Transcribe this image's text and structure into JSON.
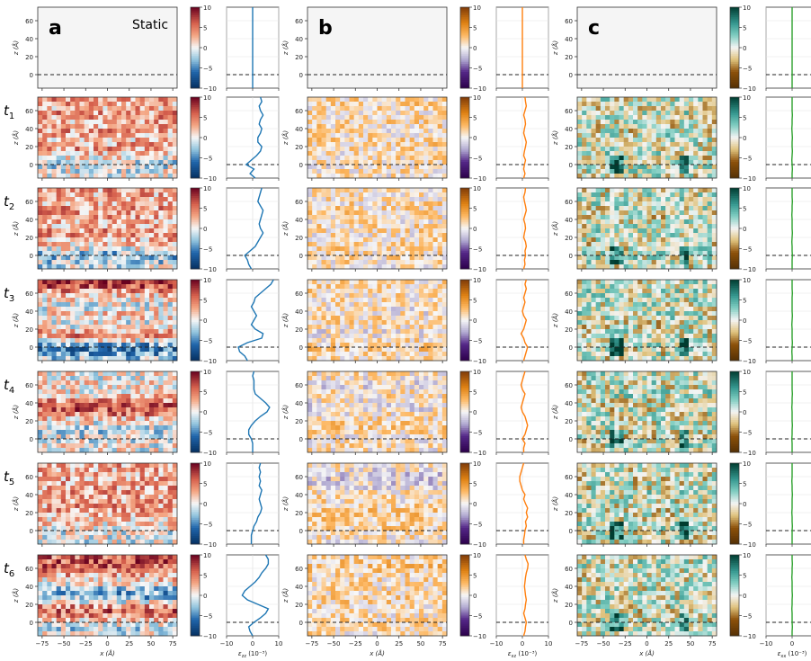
{
  "chart_data": {
    "type": "heatmap",
    "panel_letters": [
      "a",
      "b",
      "c"
    ],
    "static_label": "Static",
    "row_labels": [
      "t",
      "t",
      "t",
      "t",
      "t",
      "t"
    ],
    "row_subscripts": [
      "1",
      "2",
      "3",
      "4",
      "5",
      "6"
    ],
    "heatmap": {
      "xlabel": "x (Å)",
      "ylabel": "z (Å)",
      "xlim": [
        -80,
        80
      ],
      "ylim": [
        -15,
        75
      ],
      "xticks": [
        "−75",
        "−50",
        "−25",
        "0",
        "25",
        "50",
        "75"
      ],
      "yticks": [
        "0",
        "20",
        "40",
        "60"
      ],
      "interface_z": 0
    },
    "colorbar": {
      "range": [
        -10,
        10
      ],
      "ticks": [
        "10",
        "5",
        "0",
        "−5",
        "−10"
      ]
    },
    "profile": {
      "xlim": [
        -10,
        10
      ],
      "xticks": [
        "−10",
        "0",
        "10"
      ]
    },
    "columns": [
      {
        "letter": "a",
        "component": "zz",
        "profile_xlabel": "ε",
        "profile_xlabel_sub": "zz",
        "profile_xlabel_unit": " (10⁻³)",
        "colormap": "RdBu_r",
        "line_color": "#1f77b4",
        "profile_z": [
          -15,
          -10,
          -5,
          0,
          5,
          10,
          15,
          20,
          25,
          30,
          35,
          40,
          45,
          50,
          55,
          60,
          65,
          70,
          75
        ],
        "profiles": [
          [
            0,
            0,
            0,
            0,
            0,
            0,
            0,
            0,
            0,
            0,
            0,
            0,
            0,
            0,
            0,
            0,
            0,
            0,
            0
          ],
          [
            1,
            -1,
            0.5,
            -2.5,
            -0.5,
            1.5,
            3,
            3.5,
            2,
            2,
            3,
            3.5,
            2.5,
            3,
            4,
            3,
            2.5,
            3.5,
            3
          ],
          [
            -0.5,
            -1.5,
            -2,
            -3,
            -1,
            1,
            2,
            3,
            4,
            3,
            2.5,
            3,
            3.5,
            4,
            3,
            2,
            2.5,
            3,
            3.5
          ],
          [
            -2,
            -3,
            -5,
            -5.5,
            -2,
            3.5,
            4,
            1,
            -0.5,
            0.5,
            1.5,
            0.5,
            -0.5,
            0.5,
            1,
            3,
            5,
            7,
            8
          ],
          [
            0,
            0,
            0,
            -0.5,
            -1.5,
            -1.5,
            -0.5,
            1,
            3,
            5.5,
            6.5,
            5,
            3,
            1,
            0.5,
            0.5,
            0.5,
            0,
            0.5
          ],
          [
            -0.5,
            -0.5,
            -0.5,
            0,
            0.5,
            1.5,
            2,
            3,
            3.5,
            3,
            2.5,
            3,
            3.5,
            2.5,
            3,
            2.5,
            3,
            2.5,
            3
          ],
          [
            0,
            -1,
            -1.5,
            0.5,
            3,
            5,
            6,
            2,
            -2,
            -4,
            -3,
            -1,
            1,
            2.5,
            3.5,
            5,
            6,
            6,
            5
          ]
        ]
      },
      {
        "letter": "b",
        "component": "xz",
        "profile_xlabel": "ε",
        "profile_xlabel_sub": "xz",
        "profile_xlabel_unit": " (10⁻³)",
        "colormap": "PuOr_r",
        "line_color": "#ff7f0e",
        "profile_z": [
          -15,
          -10,
          -5,
          0,
          5,
          10,
          15,
          20,
          25,
          30,
          35,
          40,
          45,
          50,
          55,
          60,
          65,
          70,
          75
        ],
        "profiles": [
          [
            0,
            0,
            0,
            0,
            0,
            0,
            0,
            0,
            0,
            0,
            0,
            0,
            0,
            0,
            0,
            0,
            0,
            0,
            0
          ],
          [
            0.5,
            1,
            0.5,
            0.8,
            1.2,
            0.5,
            0.8,
            1.2,
            1.5,
            1,
            0.5,
            0.8,
            1.2,
            1,
            0.5,
            1,
            1.5,
            1.2,
            1
          ],
          [
            0.5,
            1,
            0.8,
            1.2,
            1,
            1.5,
            1.2,
            0.5,
            0.8,
            1.2,
            1,
            0.5,
            1,
            1.5,
            1.2,
            0.8,
            0.5,
            1,
            1.2
          ],
          [
            0.5,
            1,
            1.5,
            2,
            1,
            0.5,
            -0.5,
            0.5,
            1,
            1.5,
            0.5,
            0,
            0.5,
            1,
            0.5,
            1,
            1.5,
            1,
            1.5
          ],
          [
            0.5,
            0.5,
            1,
            0,
            1,
            1.5,
            2,
            1.5,
            1,
            0,
            -0.5,
            0,
            0.5,
            1,
            0,
            -0.5,
            0,
            0.5,
            1
          ],
          [
            0.5,
            0.5,
            0.8,
            1,
            1.5,
            1.2,
            2,
            1.5,
            2,
            1.2,
            0.5,
            1,
            0,
            -0.5,
            -1,
            -1,
            -0.5,
            0,
            0.5
          ],
          [
            0.5,
            1,
            1.2,
            1.5,
            1,
            0.5,
            1,
            1.2,
            1.5,
            1.2,
            1,
            0.8,
            1,
            1.2,
            1.5,
            2,
            2.2,
            1.5,
            1
          ]
        ]
      },
      {
        "letter": "c",
        "component": "xx",
        "profile_xlabel": "ε",
        "profile_xlabel_sub": "xx",
        "profile_xlabel_unit": " (10⁻³)",
        "colormap": "BrBG",
        "line_color": "#2ca02c",
        "profile_z": [
          -15,
          -10,
          -5,
          0,
          5,
          10,
          15,
          20,
          25,
          30,
          35,
          40,
          45,
          50,
          55,
          60,
          65,
          70,
          75
        ],
        "profiles": [
          [
            0,
            0,
            0,
            0,
            0,
            0,
            0,
            0,
            0,
            0,
            0,
            0,
            0,
            0,
            0,
            0,
            0,
            0,
            0
          ],
          [
            0,
            0,
            0.1,
            0,
            -0.1,
            0,
            0.1,
            0,
            0,
            0.1,
            0,
            -0.1,
            0,
            0,
            0.1,
            0,
            0,
            0,
            0
          ],
          [
            0,
            0,
            0,
            0.1,
            0,
            0,
            -0.1,
            0,
            0.1,
            0,
            0,
            0,
            -0.1,
            0,
            0,
            0.1,
            0,
            0,
            0
          ],
          [
            0,
            0,
            -0.1,
            0,
            0.1,
            0,
            0,
            0,
            -0.1,
            0,
            0.1,
            0,
            0,
            0,
            0,
            0.1,
            0,
            0,
            0
          ],
          [
            0,
            0,
            0,
            -0.1,
            0,
            0,
            0.1,
            0,
            0,
            0,
            -0.1,
            0,
            0,
            0.1,
            0,
            0,
            0,
            0,
            0
          ],
          [
            0,
            0,
            0,
            0,
            0.1,
            0,
            0,
            -0.1,
            0,
            0,
            0,
            0.1,
            0,
            0,
            -0.1,
            0,
            0,
            0,
            0
          ],
          [
            0,
            0,
            0.1,
            0,
            0,
            0,
            -0.1,
            0,
            0,
            0.1,
            0,
            0,
            0,
            -0.1,
            0,
            0,
            0.1,
            0,
            0
          ]
        ]
      }
    ]
  }
}
